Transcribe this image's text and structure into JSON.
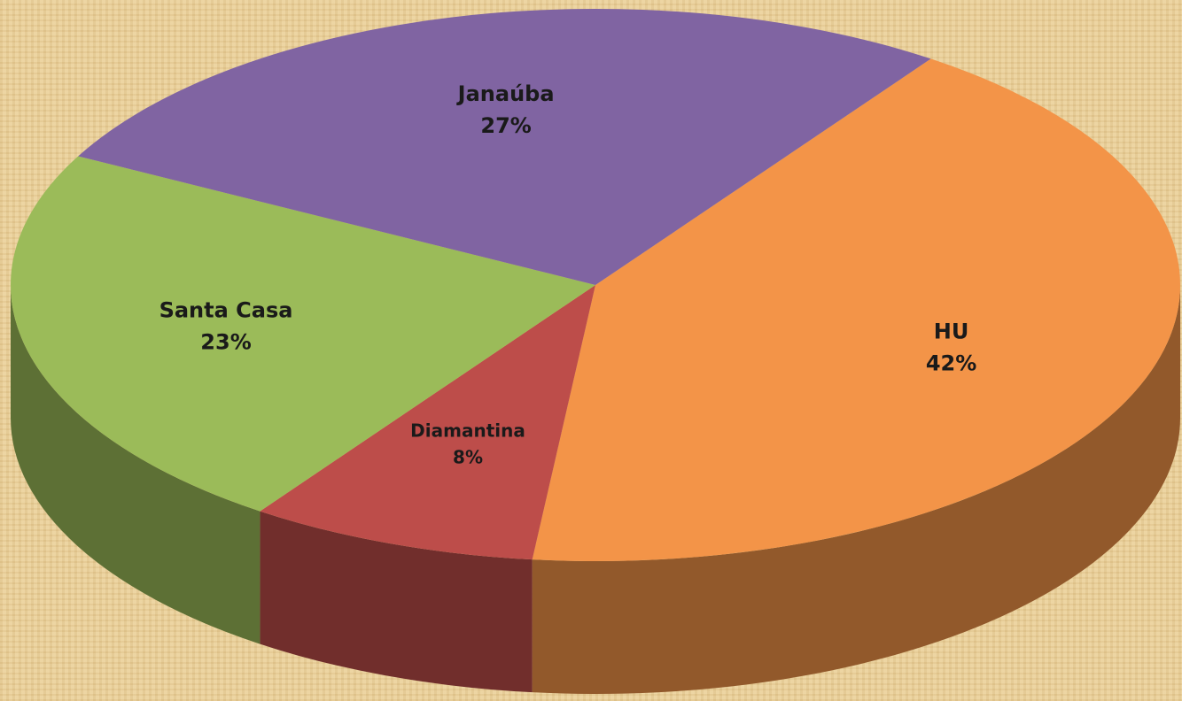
{
  "chart_data": {
    "type": "pie",
    "categories": [
      "HU",
      "Diamantina",
      "Santa Casa",
      "Janaúba"
    ],
    "values": [
      42,
      8,
      23,
      27
    ],
    "value_labels": [
      "42%",
      "8%",
      "23%",
      "27%"
    ],
    "colors": [
      "#f39448",
      "#bd4d4a",
      "#9bbb59",
      "#8064a2"
    ]
  }
}
